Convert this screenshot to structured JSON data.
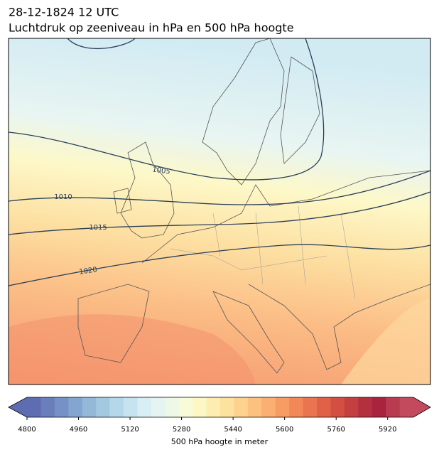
{
  "header": {
    "time": "28-12-1824 12 UTC",
    "title": "Luchtdruk op zeeniveau in hPa en 500 hPa hoogte"
  },
  "contours": {
    "labels": [
      "1005",
      "1010",
      "1015",
      "1020"
    ]
  },
  "colorbar": {
    "lim": [
      4800,
      6000
    ],
    "ticks": [
      4800,
      4960,
      5120,
      5280,
      5440,
      5600,
      5760,
      5920
    ],
    "label": "500 hPa hoogte in meter",
    "colors": [
      "#5e6cb1",
      "#6a7ebb",
      "#7591c5",
      "#83a5cf",
      "#93b8d8",
      "#a3c9e1",
      "#b4d8e9",
      "#c5e4ef",
      "#d6eef4",
      "#e5f4f2",
      "#eef8e6",
      "#f7fbd7",
      "#fdf7c5",
      "#fdedb1",
      "#fde19f",
      "#fdd28f",
      "#fcc17f",
      "#fbaf70",
      "#f79c63",
      "#f28858",
      "#ea744f",
      "#e06147",
      "#d24f42",
      "#c43f40",
      "#b5303f",
      "#a8233e",
      "#b83b50",
      "#c24a5c"
    ]
  }
}
